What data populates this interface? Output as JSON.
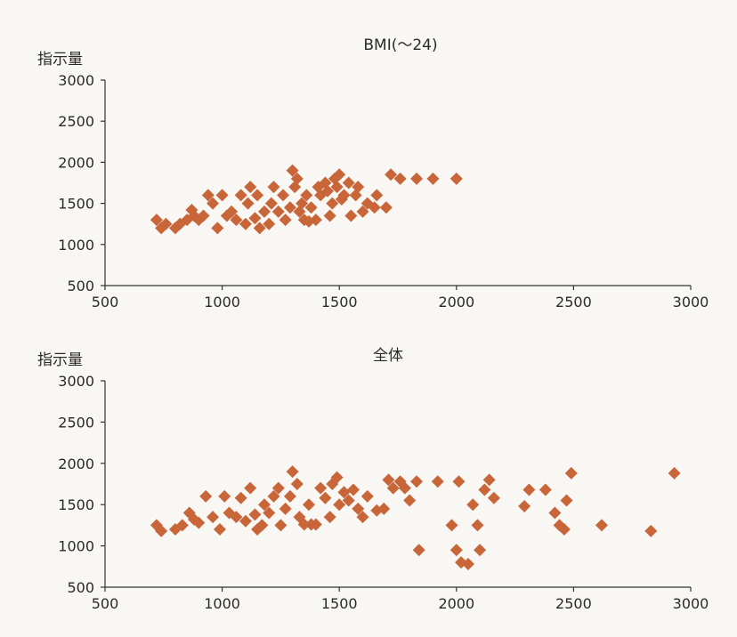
{
  "chart_data": [
    {
      "type": "scatter",
      "title": "BMI(～24)",
      "ylabel": "指示量",
      "xlabel": "",
      "xlim": [
        500,
        3000
      ],
      "ylim": [
        500,
        3000
      ],
      "xticks": [
        500,
        1000,
        1500,
        2000,
        2500,
        3000
      ],
      "yticks": [
        500,
        1000,
        1500,
        2000,
        2500,
        3000
      ],
      "grid": false,
      "marker": "diamond",
      "color": "#c8663a",
      "points": [
        [
          720,
          1300
        ],
        [
          740,
          1200
        ],
        [
          760,
          1250
        ],
        [
          800,
          1200
        ],
        [
          820,
          1250
        ],
        [
          850,
          1300
        ],
        [
          870,
          1420
        ],
        [
          880,
          1350
        ],
        [
          900,
          1300
        ],
        [
          920,
          1350
        ],
        [
          940,
          1600
        ],
        [
          960,
          1500
        ],
        [
          980,
          1200
        ],
        [
          1000,
          1600
        ],
        [
          1020,
          1350
        ],
        [
          1040,
          1400
        ],
        [
          1060,
          1300
        ],
        [
          1080,
          1600
        ],
        [
          1100,
          1250
        ],
        [
          1110,
          1500
        ],
        [
          1120,
          1700
        ],
        [
          1140,
          1320
        ],
        [
          1150,
          1600
        ],
        [
          1160,
          1200
        ],
        [
          1180,
          1400
        ],
        [
          1200,
          1250
        ],
        [
          1210,
          1500
        ],
        [
          1220,
          1700
        ],
        [
          1240,
          1400
        ],
        [
          1260,
          1600
        ],
        [
          1270,
          1300
        ],
        [
          1290,
          1450
        ],
        [
          1300,
          1900
        ],
        [
          1310,
          1700
        ],
        [
          1320,
          1800
        ],
        [
          1330,
          1400
        ],
        [
          1340,
          1500
        ],
        [
          1350,
          1300
        ],
        [
          1360,
          1600
        ],
        [
          1370,
          1280
        ],
        [
          1380,
          1450
        ],
        [
          1400,
          1300
        ],
        [
          1410,
          1700
        ],
        [
          1420,
          1600
        ],
        [
          1440,
          1750
        ],
        [
          1450,
          1650
        ],
        [
          1460,
          1350
        ],
        [
          1470,
          1500
        ],
        [
          1480,
          1800
        ],
        [
          1490,
          1700
        ],
        [
          1500,
          1850
        ],
        [
          1510,
          1550
        ],
        [
          1520,
          1600
        ],
        [
          1540,
          1750
        ],
        [
          1550,
          1350
        ],
        [
          1570,
          1600
        ],
        [
          1580,
          1700
        ],
        [
          1600,
          1400
        ],
        [
          1620,
          1500
        ],
        [
          1650,
          1450
        ],
        [
          1660,
          1600
        ],
        [
          1700,
          1450
        ],
        [
          1720,
          1850
        ],
        [
          1760,
          1800
        ],
        [
          1830,
          1800
        ],
        [
          1900,
          1800
        ],
        [
          2000,
          1800
        ]
      ]
    },
    {
      "type": "scatter",
      "title": "全体",
      "ylabel": "指示量",
      "xlabel": "",
      "xlim": [
        500,
        3000
      ],
      "ylim": [
        500,
        3000
      ],
      "xticks": [
        500,
        1000,
        1500,
        2000,
        2500,
        3000
      ],
      "yticks": [
        500,
        1000,
        1500,
        2000,
        2500,
        3000
      ],
      "grid": false,
      "marker": "diamond",
      "color": "#c8663a",
      "points": [
        [
          720,
          1250
        ],
        [
          740,
          1180
        ],
        [
          800,
          1200
        ],
        [
          830,
          1250
        ],
        [
          860,
          1400
        ],
        [
          880,
          1320
        ],
        [
          900,
          1280
        ],
        [
          930,
          1600
        ],
        [
          960,
          1350
        ],
        [
          990,
          1200
        ],
        [
          1010,
          1600
        ],
        [
          1030,
          1400
        ],
        [
          1060,
          1350
        ],
        [
          1080,
          1580
        ],
        [
          1100,
          1300
        ],
        [
          1120,
          1700
        ],
        [
          1140,
          1380
        ],
        [
          1150,
          1200
        ],
        [
          1170,
          1250
        ],
        [
          1180,
          1500
        ],
        [
          1200,
          1400
        ],
        [
          1220,
          1600
        ],
        [
          1240,
          1700
        ],
        [
          1250,
          1250
        ],
        [
          1270,
          1450
        ],
        [
          1290,
          1600
        ],
        [
          1300,
          1900
        ],
        [
          1320,
          1750
        ],
        [
          1330,
          1350
        ],
        [
          1350,
          1260
        ],
        [
          1370,
          1500
        ],
        [
          1380,
          1260
        ],
        [
          1400,
          1260
        ],
        [
          1420,
          1700
        ],
        [
          1440,
          1580
        ],
        [
          1460,
          1350
        ],
        [
          1470,
          1750
        ],
        [
          1490,
          1830
        ],
        [
          1500,
          1500
        ],
        [
          1520,
          1650
        ],
        [
          1540,
          1550
        ],
        [
          1560,
          1680
        ],
        [
          1580,
          1450
        ],
        [
          1600,
          1350
        ],
        [
          1620,
          1600
        ],
        [
          1660,
          1430
        ],
        [
          1690,
          1450
        ],
        [
          1710,
          1800
        ],
        [
          1730,
          1700
        ],
        [
          1760,
          1780
        ],
        [
          1780,
          1700
        ],
        [
          1800,
          1550
        ],
        [
          1830,
          1780
        ],
        [
          1840,
          950
        ],
        [
          1920,
          1780
        ],
        [
          1980,
          1250
        ],
        [
          2000,
          950
        ],
        [
          2010,
          1780
        ],
        [
          2020,
          800
        ],
        [
          2050,
          780
        ],
        [
          2070,
          1500
        ],
        [
          2090,
          1250
        ],
        [
          2100,
          950
        ],
        [
          2120,
          1680
        ],
        [
          2140,
          1800
        ],
        [
          2160,
          1580
        ],
        [
          2290,
          1480
        ],
        [
          2310,
          1680
        ],
        [
          2380,
          1680
        ],
        [
          2420,
          1400
        ],
        [
          2440,
          1250
        ],
        [
          2460,
          1200
        ],
        [
          2470,
          1550
        ],
        [
          2490,
          1880
        ],
        [
          2620,
          1250
        ],
        [
          2830,
          1180
        ],
        [
          2930,
          1880
        ]
      ]
    }
  ]
}
